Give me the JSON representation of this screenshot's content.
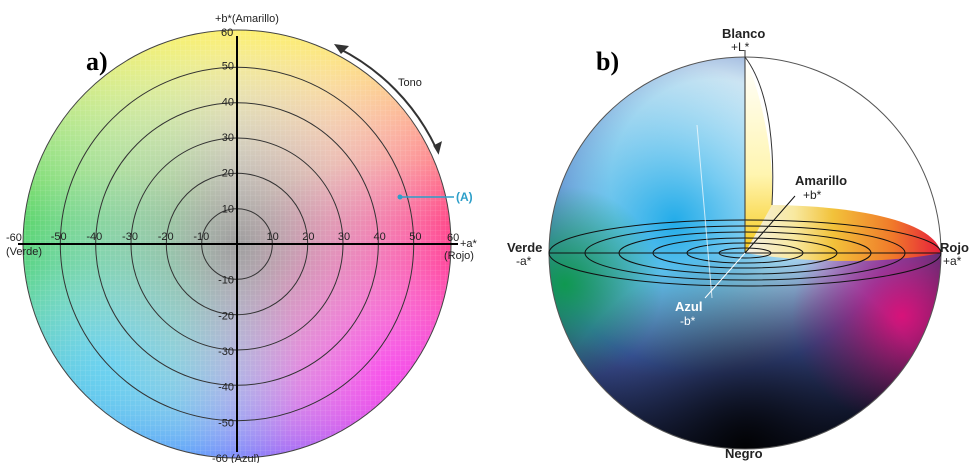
{
  "panel_a": {
    "letter": "a)",
    "axis_top": "+b*(Amarillo)",
    "axis_bottom": "-60 (Azul)",
    "axis_left_value": "-60",
    "axis_left_name": "(Verde)",
    "axis_right_value": "60",
    "axis_right_label": "+a*",
    "axis_right_name": "(Rojo)",
    "y_top_value": "60",
    "x_ticks": [
      "-50",
      "-40",
      "-30",
      "-20",
      "-10",
      "10",
      "20",
      "30",
      "40",
      "50"
    ],
    "y_ticks_pos": [
      "10",
      "20",
      "30",
      "40",
      "50"
    ],
    "y_ticks_neg": [
      "-10",
      "-20",
      "-30",
      "-40",
      "-50"
    ],
    "tono_label": "Tono",
    "point_label": "(A)",
    "point_color": "#2d9fc9"
  },
  "panel_b": {
    "letter": "b)",
    "top_name": "Blanco",
    "top_axis": "+L*",
    "yellow_name": "Amarillo",
    "yellow_axis": "+b*",
    "left_name": "Verde",
    "left_axis": "-a*",
    "right_name": "Rojo",
    "right_axis": "+a*",
    "blue_name": "Azul",
    "blue_axis": "-b*",
    "bottom_name": "Negro"
  }
}
